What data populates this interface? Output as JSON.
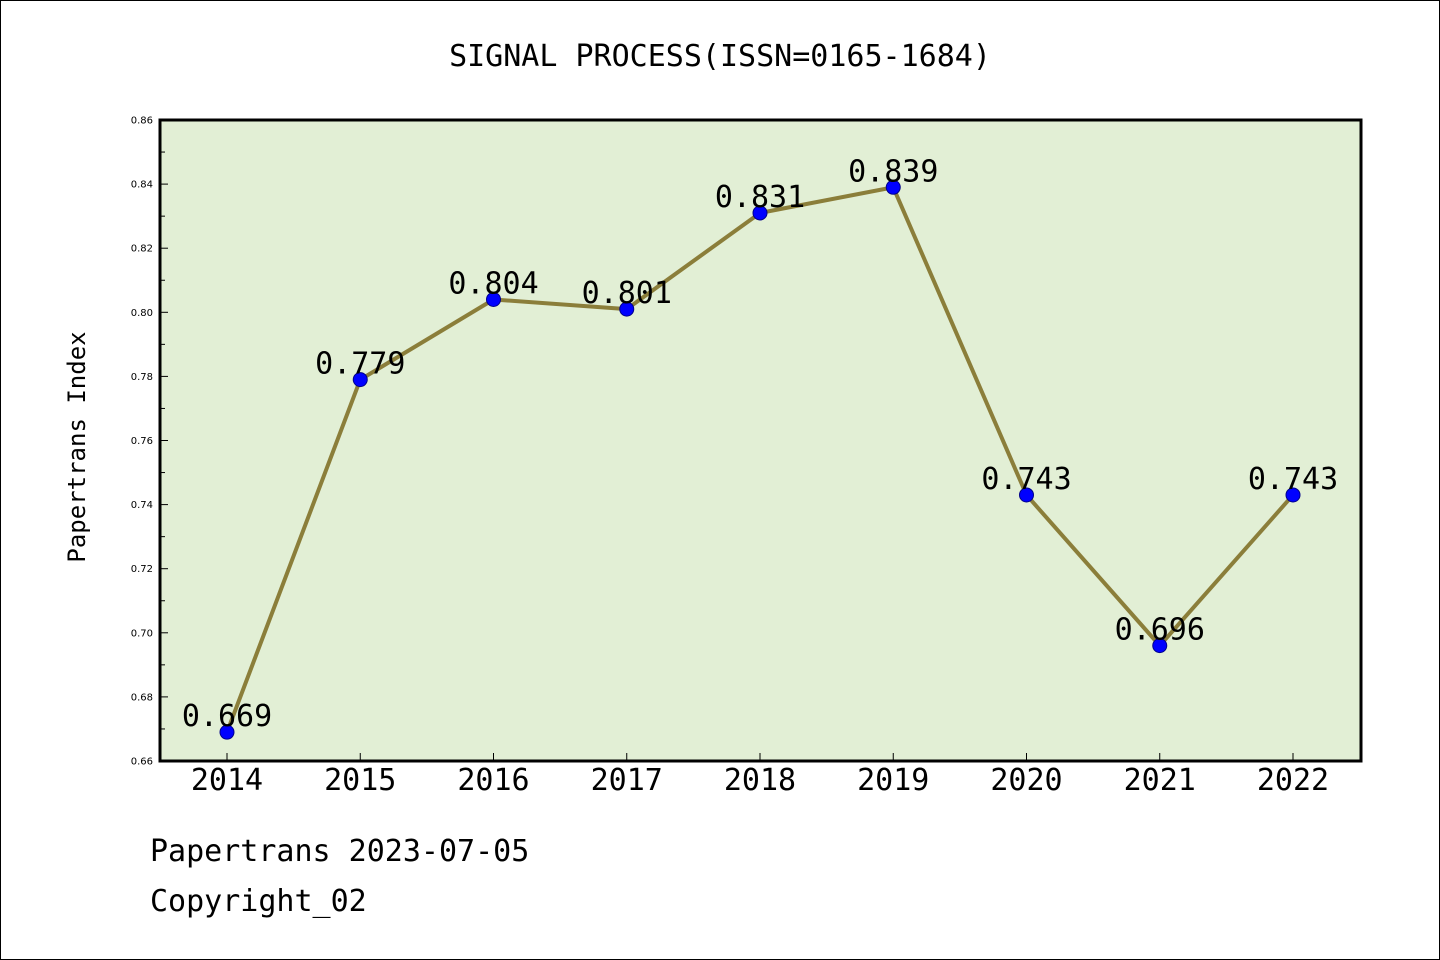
{
  "chart_data": {
    "type": "line",
    "title": "SIGNAL PROCESS(ISSN=0165-1684)",
    "xlabel": "",
    "ylabel": "Papertrans Index",
    "categories": [
      "2014",
      "2015",
      "2016",
      "2017",
      "2018",
      "2019",
      "2020",
      "2021",
      "2022"
    ],
    "series": [
      {
        "values": [
          0.669,
          0.779,
          0.804,
          0.801,
          0.831,
          0.839,
          0.743,
          0.696,
          0.743
        ],
        "data_labels": [
          "0.669",
          "0.779",
          "0.804",
          "0.801",
          "0.831",
          "0.839",
          "0.743",
          "0.696",
          "0.743"
        ]
      }
    ],
    "ylim": [
      0.66,
      0.86
    ],
    "yticks": [
      "0.66",
      "0.68",
      "0.70",
      "0.72",
      "0.74",
      "0.76",
      "0.78",
      "0.80",
      "0.82",
      "0.84",
      "0.86"
    ],
    "grid": false,
    "legend": "none",
    "colors": {
      "plot_background": "#e2efd5",
      "line": "#8b7e3a",
      "marker": "#0000ff",
      "marker_edge": "#00008b",
      "axes": "#000000"
    }
  },
  "footer": {
    "line1": "Papertrans 2023-07-05",
    "line2": "Copyright_02"
  }
}
